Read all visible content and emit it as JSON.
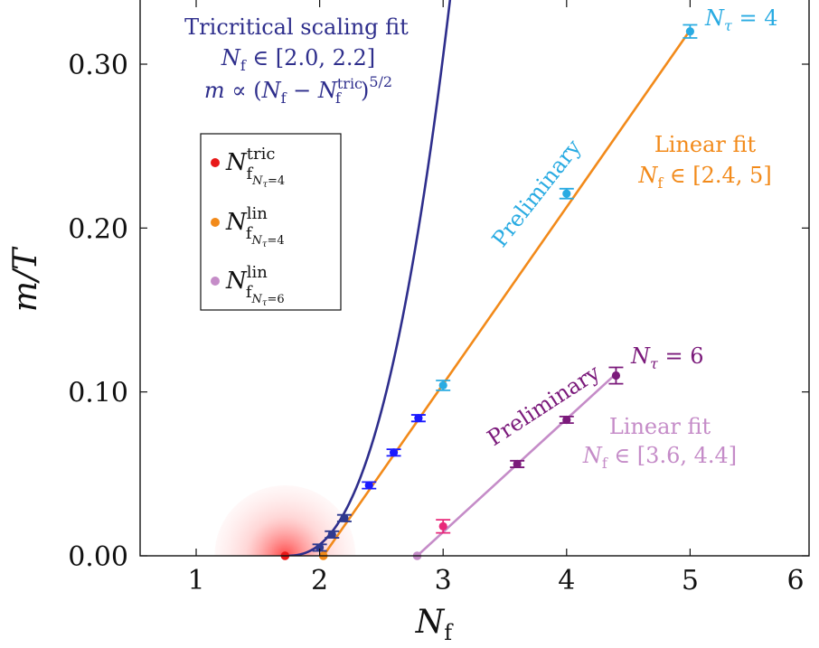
{
  "chart_data": {
    "type": "scatter",
    "xlim": [
      0.5,
      6
    ],
    "ylim": [
      0,
      0.34
    ],
    "x_ticks": [
      1,
      2,
      3,
      4,
      5,
      6
    ],
    "y_ticks": [
      0.0,
      0.1,
      0.2,
      0.3
    ],
    "y_tick_labels": [
      "0.00",
      "0.10",
      "0.20",
      "0.30"
    ],
    "xlabel": "N_f",
    "ylabel": "m/T",
    "grid": false,
    "legend_placement": "upper-left",
    "colors": {
      "ntau4_points": "#1a73e8",
      "ntau4_high": "#29abe2",
      "ntau4_low": "#2f3a8f",
      "ntau6_points": "#7b1a7b",
      "ntau6_outlier": "#e8297a",
      "tricritical_fit": "#2e2e8c",
      "linear_fit_ntau4": "#f28a1a",
      "linear_fit_ntau6": "#c58cc8",
      "tric_point": "#e81818",
      "lin4_point": "#f28a1a",
      "lin6_point": "#c58cc8"
    },
    "series": [
      {
        "name": "",
        "color_key": "ntau4",
        "points": [
          {
            "x": 2.0,
            "y": 0.005,
            "err": 0.002,
            "color": "#2f3a8f"
          },
          {
            "x": 2.1,
            "y": 0.013,
            "err": 0.002,
            "color": "#2f3a8f"
          },
          {
            "x": 2.2,
            "y": 0.023,
            "err": 0.002,
            "color": "#2f3a8f"
          },
          {
            "x": 2.4,
            "y": 0.043,
            "err": 0.002,
            "color": "#1a1aff"
          },
          {
            "x": 2.6,
            "y": 0.063,
            "err": 0.002,
            "color": "#1a1aff"
          },
          {
            "x": 2.8,
            "y": 0.084,
            "err": 0.002,
            "color": "#1a1aff"
          },
          {
            "x": 3.0,
            "y": 0.104,
            "err": 0.003,
            "color": "#29abe2"
          },
          {
            "x": 4.0,
            "y": 0.221,
            "err": 0.003,
            "color": "#29abe2"
          },
          {
            "x": 5.0,
            "y": 0.32,
            "err": 0.004,
            "color": "#29abe2"
          }
        ]
      },
      {
        "name": "",
        "color_key": "ntau6",
        "points": [
          {
            "x": 3.0,
            "y": 0.018,
            "err": 0.004,
            "color": "#e8297a"
          },
          {
            "x": 3.6,
            "y": 0.056,
            "err": 0.002,
            "color": "#7b1a7b"
          },
          {
            "x": 4.0,
            "y": 0.083,
            "err": 0.002,
            "color": "#7b1a7b"
          },
          {
            "x": 4.4,
            "y": 0.11,
            "err": 0.005,
            "color": "#7b1a7b"
          }
        ]
      }
    ],
    "special_points": [
      {
        "legend_index": 0,
        "x": 1.72,
        "y": 0.0,
        "color": "#e81818"
      },
      {
        "legend_index": 1,
        "x": 2.03,
        "y": 0.0,
        "color": "#f28a1a"
      },
      {
        "legend_index": 2,
        "x": 2.79,
        "y": 0.0,
        "color": "#c58cc8"
      }
    ],
    "fits": {
      "tricritical": {
        "ntric": 1.72,
        "coef": 0.1645,
        "x_end": 3.1,
        "color": "#2e2e8c"
      },
      "linear_ntau4": {
        "x0": 2.03,
        "slope": 0.108,
        "x_end": 5.0,
        "color": "#f28a1a"
      },
      "linear_ntau6": {
        "x0": 2.79,
        "slope": 0.069,
        "x_end": 4.4,
        "color": "#c58cc8"
      }
    },
    "annotations": {
      "tric_line1": "Tricritical scaling fit",
      "tric_line2": "N_f ∈ [2.0, 2.2]",
      "tric_line3": "m ∝ (N_f − N_f^tric)^5/2",
      "lin4_line1": "Linear fit",
      "lin4_line2": "N_f ∈ [2.4, 5]",
      "lin6_line1": "Linear fit",
      "lin6_line2": "N_f ∈ [3.6, 4.4]",
      "ntau4_label": "N_τ = 4",
      "ntau6_label": "N_τ = 6",
      "preliminary_1": "Preliminary",
      "preliminary_2": "Preliminary"
    },
    "legend": [
      {
        "label": "N_f^tric (N_τ=4)",
        "color": "#e81818"
      },
      {
        "label": "N_f^lin (N_τ=4)",
        "color": "#f28a1a"
      },
      {
        "label": "N_f^lin (N_τ=6)",
        "color": "#c58cc8"
      }
    ]
  }
}
